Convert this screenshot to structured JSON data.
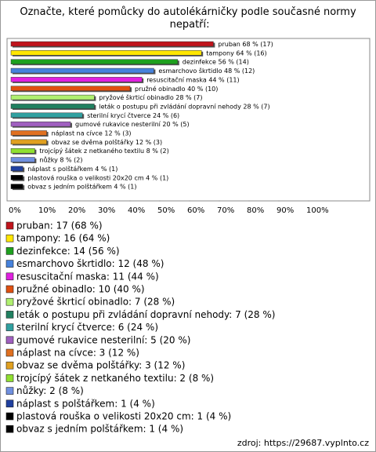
{
  "chart_data": {
    "type": "bar",
    "orientation": "horizontal",
    "title": "Označte, které pomůcky do autolékárničky podle současné normy nepatří:",
    "values": [
      68,
      64,
      56,
      48,
      44,
      40,
      28,
      28,
      24,
      20,
      12,
      12,
      8,
      8,
      4,
      4,
      4
    ],
    "value_labels": [
      "pruban 68 % (17)",
      "tampony 64 % (16)",
      "dezinfekce 56 % (14)",
      "esmarchovo škrtidlo 48 % (12)",
      "resuscitační maska 44 % (11)",
      "pružné obinadlo 40 % (10)",
      "pryžové škrticí obinadlo 28 % (7)",
      "leták o postupu při zvládání dopravní nehody 28 % (7)",
      "sterilní krycí čtverce 24 % (6)",
      "gumové rukavice nesterilní 20 % (5)",
      "náplast na cívce 12 % (3)",
      "obvaz se dvěma polštářky 12 % (3)",
      "trojcípý šátek z netkaného textilu 8 % (2)",
      "nůžky 8 % (2)",
      "náplast s polštářkem 4 % (1)",
      "plastová rouška o velikosti 20x20 cm 4 % (1)",
      "obvaz s jedním polštářkem 4 % (1)"
    ],
    "legend_labels": [
      "pruban: 17 (68 %)",
      "tampony: 16 (64 %)",
      "dezinfekce: 14 (56 %)",
      "esmarchovo škrtidlo: 12 (48 %)",
      "resuscitační maska: 11 (44 %)",
      "pružné obinadlo: 10 (40 %)",
      "pryžové škrticí obinadlo: 7 (28 %)",
      "leták o postupu při zvládání dopravní nehody: 7 (28 %)",
      "sterilní krycí čtverce: 6 (24 %)",
      "gumové rukavice nesterilní: 5 (20 %)",
      "náplast na cívce: 3 (12 %)",
      "obvaz se dvěma polštářky: 3 (12 %)",
      "trojcípý šátek z netkaného textilu: 2 (8 %)",
      "nůžky: 2 (8 %)",
      "náplast s polštářkem: 1 (4 %)",
      "plastová rouška o velikosti 20x20 cm: 1 (4 %)",
      "obvaz s jedním polštářkem: 1 (4 %)"
    ],
    "colors": [
      "#c0141c",
      "#ffe600",
      "#1ea01e",
      "#4682dc",
      "#e020e0",
      "#e05010",
      "#b0f070",
      "#208060",
      "#30a0a0",
      "#a060c0",
      "#e07020",
      "#e0a020",
      "#90e030",
      "#7090e0",
      "#2040a0",
      "#000000",
      "#000000"
    ],
    "xlim": [
      0,
      100
    ],
    "xticks": [
      {
        "value": 0,
        "label": "0%"
      },
      {
        "value": 10,
        "label": "10%"
      },
      {
        "value": 20,
        "label": "20%"
      },
      {
        "value": 30,
        "label": "30%"
      },
      {
        "value": 40,
        "label": "40%"
      },
      {
        "value": 50,
        "label": "50%"
      },
      {
        "value": 60,
        "label": "60%"
      },
      {
        "value": 70,
        "label": "70%"
      },
      {
        "value": 80,
        "label": "80%"
      },
      {
        "value": 90,
        "label": "90%"
      },
      {
        "value": 100,
        "label": "100%"
      }
    ],
    "source": "zdroj: https://29687.vyplnto.cz"
  }
}
